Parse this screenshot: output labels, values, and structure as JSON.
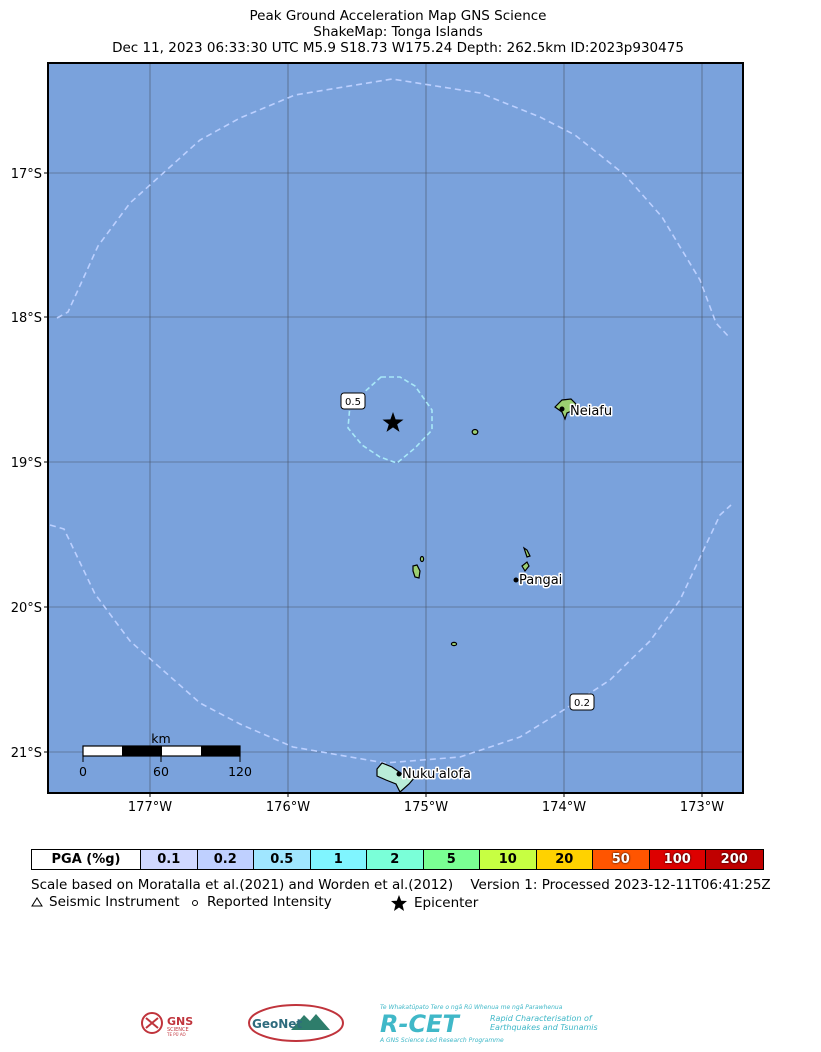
{
  "header": {
    "line1": "Peak Ground Acceleration Map GNS Science",
    "line2": "ShakeMap: Tonga Islands",
    "line3": "Dec 11, 2023 06:33:30 UTC M5.9 S18.73 W175.24 Depth: 262.5km ID:2023p930475"
  },
  "map": {
    "ocean_color": "#7aa2dc",
    "land_color": "#9ccf72",
    "lat_labels": [
      "17°S",
      "18°S",
      "19°S",
      "20°S",
      "21°S"
    ],
    "lon_labels": [
      "177°W",
      "176°W",
      "175°W",
      "174°W",
      "173°W"
    ],
    "contours": [
      "0.5",
      "0.2"
    ],
    "places": [
      "Neiafu",
      "Pangai",
      "Nuku'alofa"
    ],
    "epicenter": {
      "lat": -18.73,
      "lon": -175.24
    },
    "scalebar": {
      "unit": "km",
      "ticks": [
        "0",
        "60",
        "120"
      ]
    }
  },
  "legend": {
    "header": "PGA (%g)",
    "levels": [
      {
        "label": "0.1",
        "color": "#d0d8ff"
      },
      {
        "label": "0.2",
        "color": "#bfd0ff"
      },
      {
        "label": "0.5",
        "color": "#a0e6ff"
      },
      {
        "label": "1",
        "color": "#80f5ff"
      },
      {
        "label": "2",
        "color": "#7affd8"
      },
      {
        "label": "5",
        "color": "#7aff93"
      },
      {
        "label": "10",
        "color": "#c7ff42"
      },
      {
        "label": "20",
        "color": "#ffd200"
      },
      {
        "label": "50",
        "color": "#ff5500"
      },
      {
        "label": "100",
        "color": "#dd0000"
      },
      {
        "label": "200",
        "color": "#c00000"
      }
    ],
    "scale_note": "Scale based on Moratalla et al.(2021) and Worden et al.(2012)",
    "version_note": "Version 1: Processed 2023-12-11T06:41:25Z",
    "key_instrument": "Seismic Instrument",
    "key_intensity": "Reported Intensity",
    "key_epicenter": "Epicenter"
  },
  "logos": {
    "gns_line1": "GNS",
    "gns_line2": "SCIENCE",
    "gns_line3": "TE PŪ AO",
    "geonet": "GeoNet",
    "rcet_tag": "Te Whakatūpato Tere o ngā Rū Whenua me ngā Parawhenua",
    "rcet_name": "R-CET",
    "rcet_desc1": "Rapid Characterisation of",
    "rcet_desc2": "Earthquakes and Tsunamis",
    "rcet_sub": "A GNS Science Led Research Programme"
  }
}
